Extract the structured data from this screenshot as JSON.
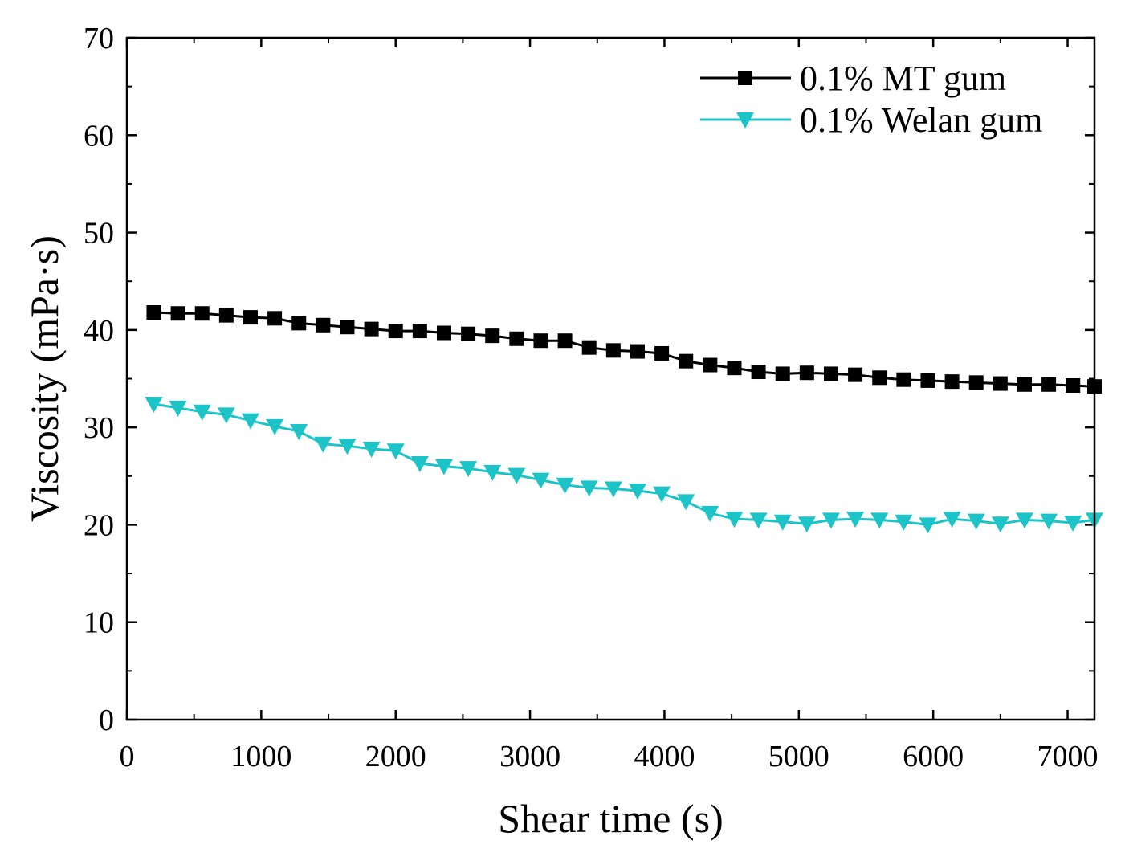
{
  "chart_data": {
    "type": "line",
    "title": "",
    "xlabel": "Shear time (s)",
    "ylabel": "Viscosity (mPa·s)",
    "xlim": [
      0,
      7200
    ],
    "ylim": [
      0,
      70
    ],
    "x_ticks": [
      0,
      1000,
      2000,
      3000,
      4000,
      5000,
      6000,
      7000
    ],
    "x_tick_labels": [
      "0",
      "1000",
      "2000",
      "3000",
      "4000",
      "5000",
      "6000",
      "7000"
    ],
    "y_ticks": [
      0,
      10,
      20,
      30,
      40,
      50,
      60,
      70
    ],
    "y_tick_labels": [
      "0",
      "10",
      "20",
      "30",
      "40",
      "50",
      "60",
      "70"
    ],
    "grid": false,
    "legend_position": "top-right",
    "x": [
      200,
      380,
      560,
      740,
      920,
      1100,
      1280,
      1460,
      1640,
      1820,
      2000,
      2180,
      2360,
      2540,
      2720,
      2900,
      3080,
      3260,
      3440,
      3620,
      3800,
      3980,
      4160,
      4340,
      4520,
      4700,
      4880,
      5060,
      5240,
      5420,
      5600,
      5780,
      5960,
      6140,
      6320,
      6500,
      6680,
      6860,
      7040,
      7200
    ],
    "series": [
      {
        "name": "0.1% MT gum",
        "color": "#000000",
        "marker": "square",
        "values": [
          41.8,
          41.7,
          41.7,
          41.5,
          41.3,
          41.2,
          40.7,
          40.5,
          40.3,
          40.1,
          39.9,
          39.9,
          39.7,
          39.6,
          39.4,
          39.1,
          38.9,
          38.9,
          38.2,
          37.9,
          37.8,
          37.6,
          36.8,
          36.4,
          36.1,
          35.7,
          35.5,
          35.6,
          35.5,
          35.4,
          35.1,
          34.9,
          34.8,
          34.7,
          34.6,
          34.5,
          34.4,
          34.4,
          34.3,
          34.2
        ]
      },
      {
        "name": "0.1% Welan gum",
        "color": "#1cc4c8",
        "marker": "triangle-down",
        "values": [
          32.4,
          32.0,
          31.6,
          31.3,
          30.7,
          30.1,
          29.6,
          28.3,
          28.1,
          27.8,
          27.6,
          26.3,
          26.0,
          25.8,
          25.4,
          25.1,
          24.6,
          24.1,
          23.8,
          23.7,
          23.5,
          23.2,
          22.4,
          21.2,
          20.6,
          20.5,
          20.3,
          20.1,
          20.5,
          20.6,
          20.5,
          20.3,
          20.0,
          20.6,
          20.4,
          20.1,
          20.5,
          20.4,
          20.2,
          20.5
        ]
      }
    ]
  }
}
